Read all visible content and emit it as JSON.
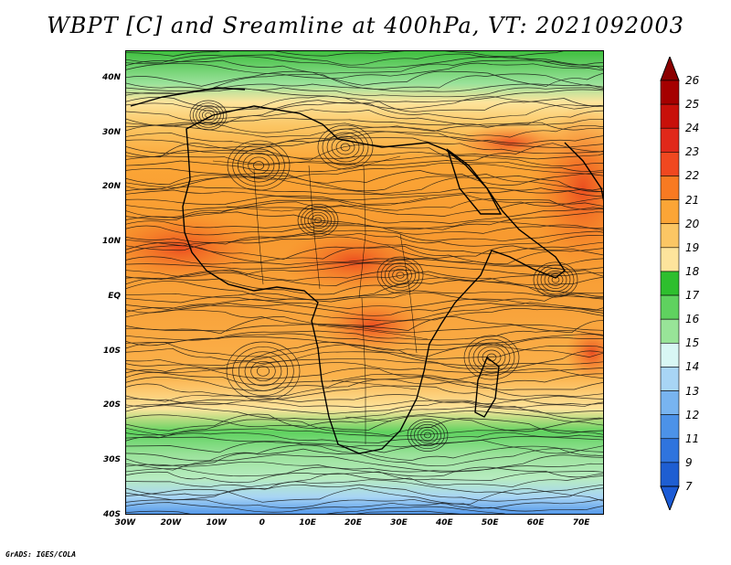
{
  "title": "WBPT [C] and Sreamline at 400hPa, VT: 2021092003",
  "credit": "GrADS: IGES/COLA",
  "map": {
    "lon_range": [
      -30,
      75
    ],
    "lat_range": [
      -40,
      45
    ],
    "lat_ticks": [
      {
        "value": 40,
        "label": "40N"
      },
      {
        "value": 30,
        "label": "30N"
      },
      {
        "value": 20,
        "label": "20N"
      },
      {
        "value": 10,
        "label": "10N"
      },
      {
        "value": 0,
        "label": "EQ"
      },
      {
        "value": -10,
        "label": "10S"
      },
      {
        "value": -20,
        "label": "20S"
      },
      {
        "value": -30,
        "label": "30S"
      },
      {
        "value": -40,
        "label": "40S"
      }
    ],
    "lon_ticks": [
      {
        "value": -30,
        "label": "30W"
      },
      {
        "value": -20,
        "label": "20W"
      },
      {
        "value": -10,
        "label": "10W"
      },
      {
        "value": 0,
        "label": "0"
      },
      {
        "value": 10,
        "label": "10E"
      },
      {
        "value": 20,
        "label": "20E"
      },
      {
        "value": 30,
        "label": "30E"
      },
      {
        "value": 40,
        "label": "40E"
      },
      {
        "value": 50,
        "label": "50E"
      },
      {
        "value": 60,
        "label": "60E"
      },
      {
        "value": 70,
        "label": "70E"
      }
    ]
  },
  "colorbar": {
    "labels": [
      "26",
      "25",
      "24",
      "23",
      "22",
      "21",
      "20",
      "19",
      "18",
      "17",
      "16",
      "15",
      "14",
      "13",
      "12",
      "11",
      "9",
      "7"
    ],
    "colors": [
      "#a50000",
      "#c8100a",
      "#e0281a",
      "#f04820",
      "#f87a22",
      "#fba536",
      "#fbc664",
      "#fde49c",
      "#2ebf2e",
      "#5fd25f",
      "#98e498",
      "#d8f7f4",
      "#a8d5f5",
      "#78b4f0",
      "#4c92e8",
      "#2f74de",
      "#1e5ed2"
    ],
    "top_arrow_color": "#8b0000",
    "bottom_arrow_color": "#1b5bd6"
  }
}
